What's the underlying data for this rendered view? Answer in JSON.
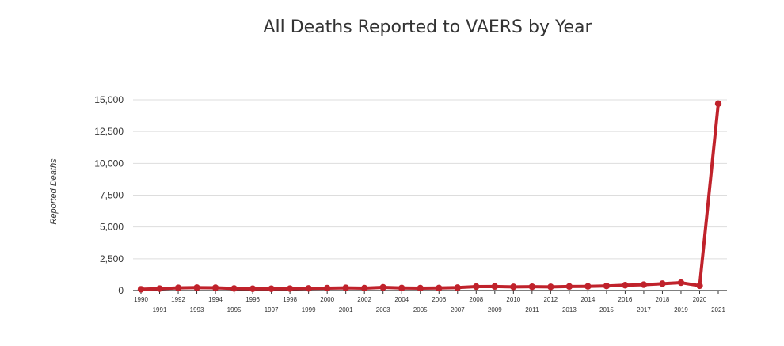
{
  "chart_data": {
    "type": "line",
    "title": "All Deaths Reported to VAERS by Year",
    "xlabel": "",
    "ylabel": "Reported Deaths",
    "x": [
      "1990",
      "1991",
      "1992",
      "1993",
      "1994",
      "1995",
      "1996",
      "1997",
      "1998",
      "1999",
      "2000",
      "2001",
      "2002",
      "2003",
      "2004",
      "2005",
      "2006",
      "2007",
      "2008",
      "2009",
      "2010",
      "2011",
      "2012",
      "2013",
      "2014",
      "2015",
      "2016",
      "2017",
      "2018",
      "2019",
      "2020",
      "2021"
    ],
    "series": [
      {
        "values": [
          100,
          150,
          210,
          230,
          220,
          160,
          140,
          140,
          150,
          170,
          190,
          210,
          190,
          250,
          200,
          190,
          200,
          230,
          310,
          320,
          290,
          300,
          290,
          320,
          330,
          360,
          420,
          460,
          540,
          620,
          380,
          14700
        ]
      }
    ],
    "yticks": [
      "15,000",
      "12,500",
      "10,000",
      "7,500",
      "5,000",
      "2,500",
      "0"
    ],
    "ytick_values": [
      15000,
      12500,
      10000,
      7500,
      5000,
      2500,
      0
    ],
    "ylim": [
      0,
      15000
    ],
    "grid": true,
    "legend": "none",
    "colors": {
      "line": "#c0222b",
      "grid": "#dddddd",
      "axis": "#333333",
      "text": "#333333"
    }
  }
}
